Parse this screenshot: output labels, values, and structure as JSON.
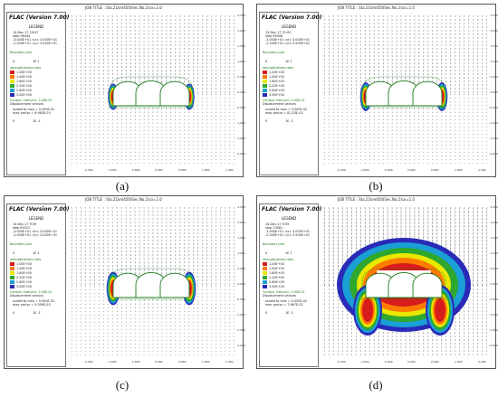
{
  "colors": {
    "ratio_1": "#d81b1b",
    "ratio_2": "#ff7a00",
    "ratio_3": "#e8e800",
    "ratio_4": "#2ea82e",
    "ratio_5": "#1a9fd6",
    "ratio_6": "#2a2ab8",
    "contour_green": "#1a7a1a",
    "vector": "#111111"
  },
  "panels": [
    {
      "id": "a",
      "caption": "(a)",
      "job_title": "JOB TITLE : Sta.21km450(Sec.No.2)cx=1.0",
      "flac": "FLAC (Version 7.00)",
      "legend_title": "LEGEND",
      "date": "14-Dec-17 10:07",
      "step": "step   96434",
      "xrange": "-3.000E+01 <x< 3.000E+01",
      "yrange": "-2.500E+01 <y< 3.500E+01",
      "boundary": "Boundary plot",
      "scale0": "0",
      "scale1": "1E 1",
      "strength": "strength/stress ratio",
      "ratios": [
        "1.00E+00",
        "1.40E+00",
        "1.80E+00",
        "2.20E+00",
        "2.60E+00",
        "3.00E+00"
      ],
      "contour": "Contour interval= 2.00E-01",
      "disp": "Displacement vectors",
      "scaled": "scaled to max = 5.000E-02",
      "maxvec": "max vector = 6.963E-03",
      "vscale0": "0",
      "vscale1": "1E -1",
      "zone_scale": 0.55,
      "xticks": [
        "-2.400",
        "-1.600",
        "-0.800",
        "0.000",
        "0.800",
        "1.600",
        "2.400"
      ],
      "yticks": [
        "2.500",
        "2.000",
        "1.500",
        "1.000",
        "0.500",
        "0.000",
        "-0.500",
        "-1.000",
        "-1.500",
        "-2.000"
      ]
    },
    {
      "id": "b",
      "caption": "(b)",
      "job_title": "JOB TITLE : Sta.21km450(Sec.No.2)cx=1.0",
      "flac": "FLAC (Version 7.00)",
      "legend_title": "LEGEND",
      "date": "13-Dec-17 21:00",
      "step": "step   69508",
      "xrange": "-3.000E+01 <x< 3.000E+01",
      "yrange": "-2.500E+01 <y< 3.500E+01",
      "boundary": "Boundary plot",
      "scale0": "0",
      "scale1": "1E 1",
      "strength": "strength/stress ratio",
      "ratios": [
        "1.00E+00",
        "1.40E+00",
        "1.80E+00",
        "2.20E+00",
        "2.60E+00",
        "3.00E+00"
      ],
      "contour": "Contour interval= 2.00E-01",
      "disp": "Displacement vectors",
      "scaled": "scaled to max = 5.000E-02",
      "maxvec": "max vector = 8.133E-03",
      "vscale0": "0",
      "vscale1": "1E -1",
      "zone_scale": 0.6,
      "xticks": [
        "-2.400",
        "-1.600",
        "-0.800",
        "0.000",
        "0.800",
        "1.600",
        "2.400"
      ],
      "yticks": [
        "2.500",
        "2.000",
        "1.500",
        "1.000",
        "0.500",
        "0.000",
        "-0.500",
        "-1.000",
        "-1.500",
        "-2.000"
      ]
    },
    {
      "id": "c",
      "caption": "(c)",
      "job_title": "JOB TITLE : Sta.21km450(Sec.No.2)cx=1.0",
      "flac": "FLAC (Version 7.00)",
      "legend_title": "LEGEND",
      "date": "14-Dec-17 9:59",
      "step": "step   60312",
      "xrange": "-3.000E+01 <x< 3.000E+01",
      "yrange": "-2.500E+01 <y< 3.500E+01",
      "boundary": "Boundary plot",
      "scale0": "0",
      "scale1": "1E 1",
      "strength": "strength/stress ratio",
      "ratios": [
        "1.00E+00",
        "1.40E+00",
        "1.80E+00",
        "2.20E+00",
        "2.60E+00",
        "3.00E+00"
      ],
      "contour": "Contour interval= 2.00E-01",
      "disp": "Displacement vectors",
      "scaled": "scaled to max = 5.000E-02",
      "maxvec": "max vector = 9.309E-03",
      "vscale0": "0",
      "vscale1": "1E -1",
      "zone_scale": 0.7,
      "xticks": [
        "-2.400",
        "-1.600",
        "-0.800",
        "0.000",
        "0.800",
        "1.600",
        "2.400"
      ],
      "yticks": [
        "2.500",
        "2.000",
        "1.500",
        "1.000",
        "0.500",
        "0.000",
        "-0.500",
        "-1.000",
        "-1.500",
        "-2.000"
      ]
    },
    {
      "id": "d",
      "caption": "(d)",
      "job_title": "JOB TITLE : Sta.21km450(Sec.No.2)cx=1.0",
      "flac": "FLAC (Version 7.00)",
      "legend_title": "LEGEND",
      "date": "14-Dec-17 9:59",
      "step": "step   53581",
      "xrange": "-3.000E+01 <x< 3.000E+01",
      "yrange": "-2.500E+01 <y< 3.500E+01",
      "boundary": "Boundary plot",
      "scale0": "0",
      "scale1": "1E 1",
      "strength": "strength/stress ratio",
      "ratios": [
        "1.00E+00",
        "1.40E+00",
        "1.80E+00",
        "2.20E+00",
        "2.60E+00",
        "3.00E+00"
      ],
      "contour": "Contour interval= 2.00E-01",
      "disp": "Displacement vectors",
      "scaled": "scaled to max = 5.000E-02",
      "maxvec": "max vector = 7.667E-02",
      "vscale0": "0",
      "vscale1": "1E -1",
      "zone_scale": 3.2,
      "xticks": [
        "-2.400",
        "-1.600",
        "-0.800",
        "0.000",
        "0.800",
        "1.600",
        "2.400"
      ],
      "yticks": [
        "2.500",
        "2.000",
        "1.500",
        "1.000",
        "0.500",
        "0.000",
        "-0.500",
        "-1.000",
        "-1.500",
        "-2.000"
      ]
    }
  ]
}
